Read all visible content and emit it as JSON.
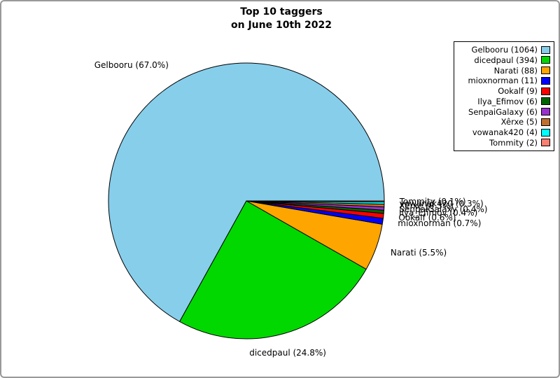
{
  "title": {
    "line1": "Top 10 taggers",
    "line2": "on June 10th 2022"
  },
  "chart_data": {
    "type": "pie",
    "title": "Top 10 taggers on June 10th 2022",
    "legend_position": "upper right",
    "start_angle_deg": 0,
    "direction": "counterclockwise",
    "label_distance": 1.11,
    "slices": [
      {
        "name": "Gelbooru",
        "count": 1064,
        "pct": 67.0,
        "color": "#87CEEB",
        "label": "Gelbooru (67.0%)",
        "legend_label": "Gelbooru (1064)"
      },
      {
        "name": "dicedpaul",
        "count": 394,
        "pct": 24.8,
        "color": "#00D800",
        "label": "dicedpaul (24.8%)",
        "legend_label": "dicedpaul (394)"
      },
      {
        "name": "Narati",
        "count": 88,
        "pct": 5.5,
        "color": "#FFA500",
        "label": "Narati (5.5%)",
        "legend_label": "Narati (88)"
      },
      {
        "name": "mioxnorman",
        "count": 11,
        "pct": 0.7,
        "color": "#0000FF",
        "label": "mioxnorman (0.7%)",
        "legend_label": "mioxnorman (11)"
      },
      {
        "name": "Ookalf",
        "count": 9,
        "pct": 0.6,
        "color": "#FF0000",
        "label": "Ookalf (0.6%)",
        "legend_label": "Ookalf (9)"
      },
      {
        "name": "Ilya_Efimov",
        "count": 6,
        "pct": 0.4,
        "color": "#006400",
        "label": "Ilya_Efimov (0.4%)",
        "legend_label": "Ilya_Efimov (6)"
      },
      {
        "name": "SenpaiGalaxy",
        "count": 6,
        "pct": 0.4,
        "color": "#9932CC",
        "label": "SenpaiGalaxy (0.4%)",
        "legend_label": "SenpaiGalaxy (6)"
      },
      {
        "name": "Xêrxe",
        "count": 5,
        "pct": 0.3,
        "color": "#C0702D",
        "label": "Xêrxe (0.3%)",
        "legend_label": "Xêrxe (5)"
      },
      {
        "name": "vowanak420",
        "count": 4,
        "pct": 0.3,
        "color": "#00FFFF",
        "label": "vowanak420 (0.3%)",
        "legend_label": "vowanak420 (4)"
      },
      {
        "name": "Tommity",
        "count": 2,
        "pct": 0.1,
        "color": "#FA8072",
        "label": "Tommity (0.1%)",
        "legend_label": "Tommity (2)"
      }
    ]
  }
}
